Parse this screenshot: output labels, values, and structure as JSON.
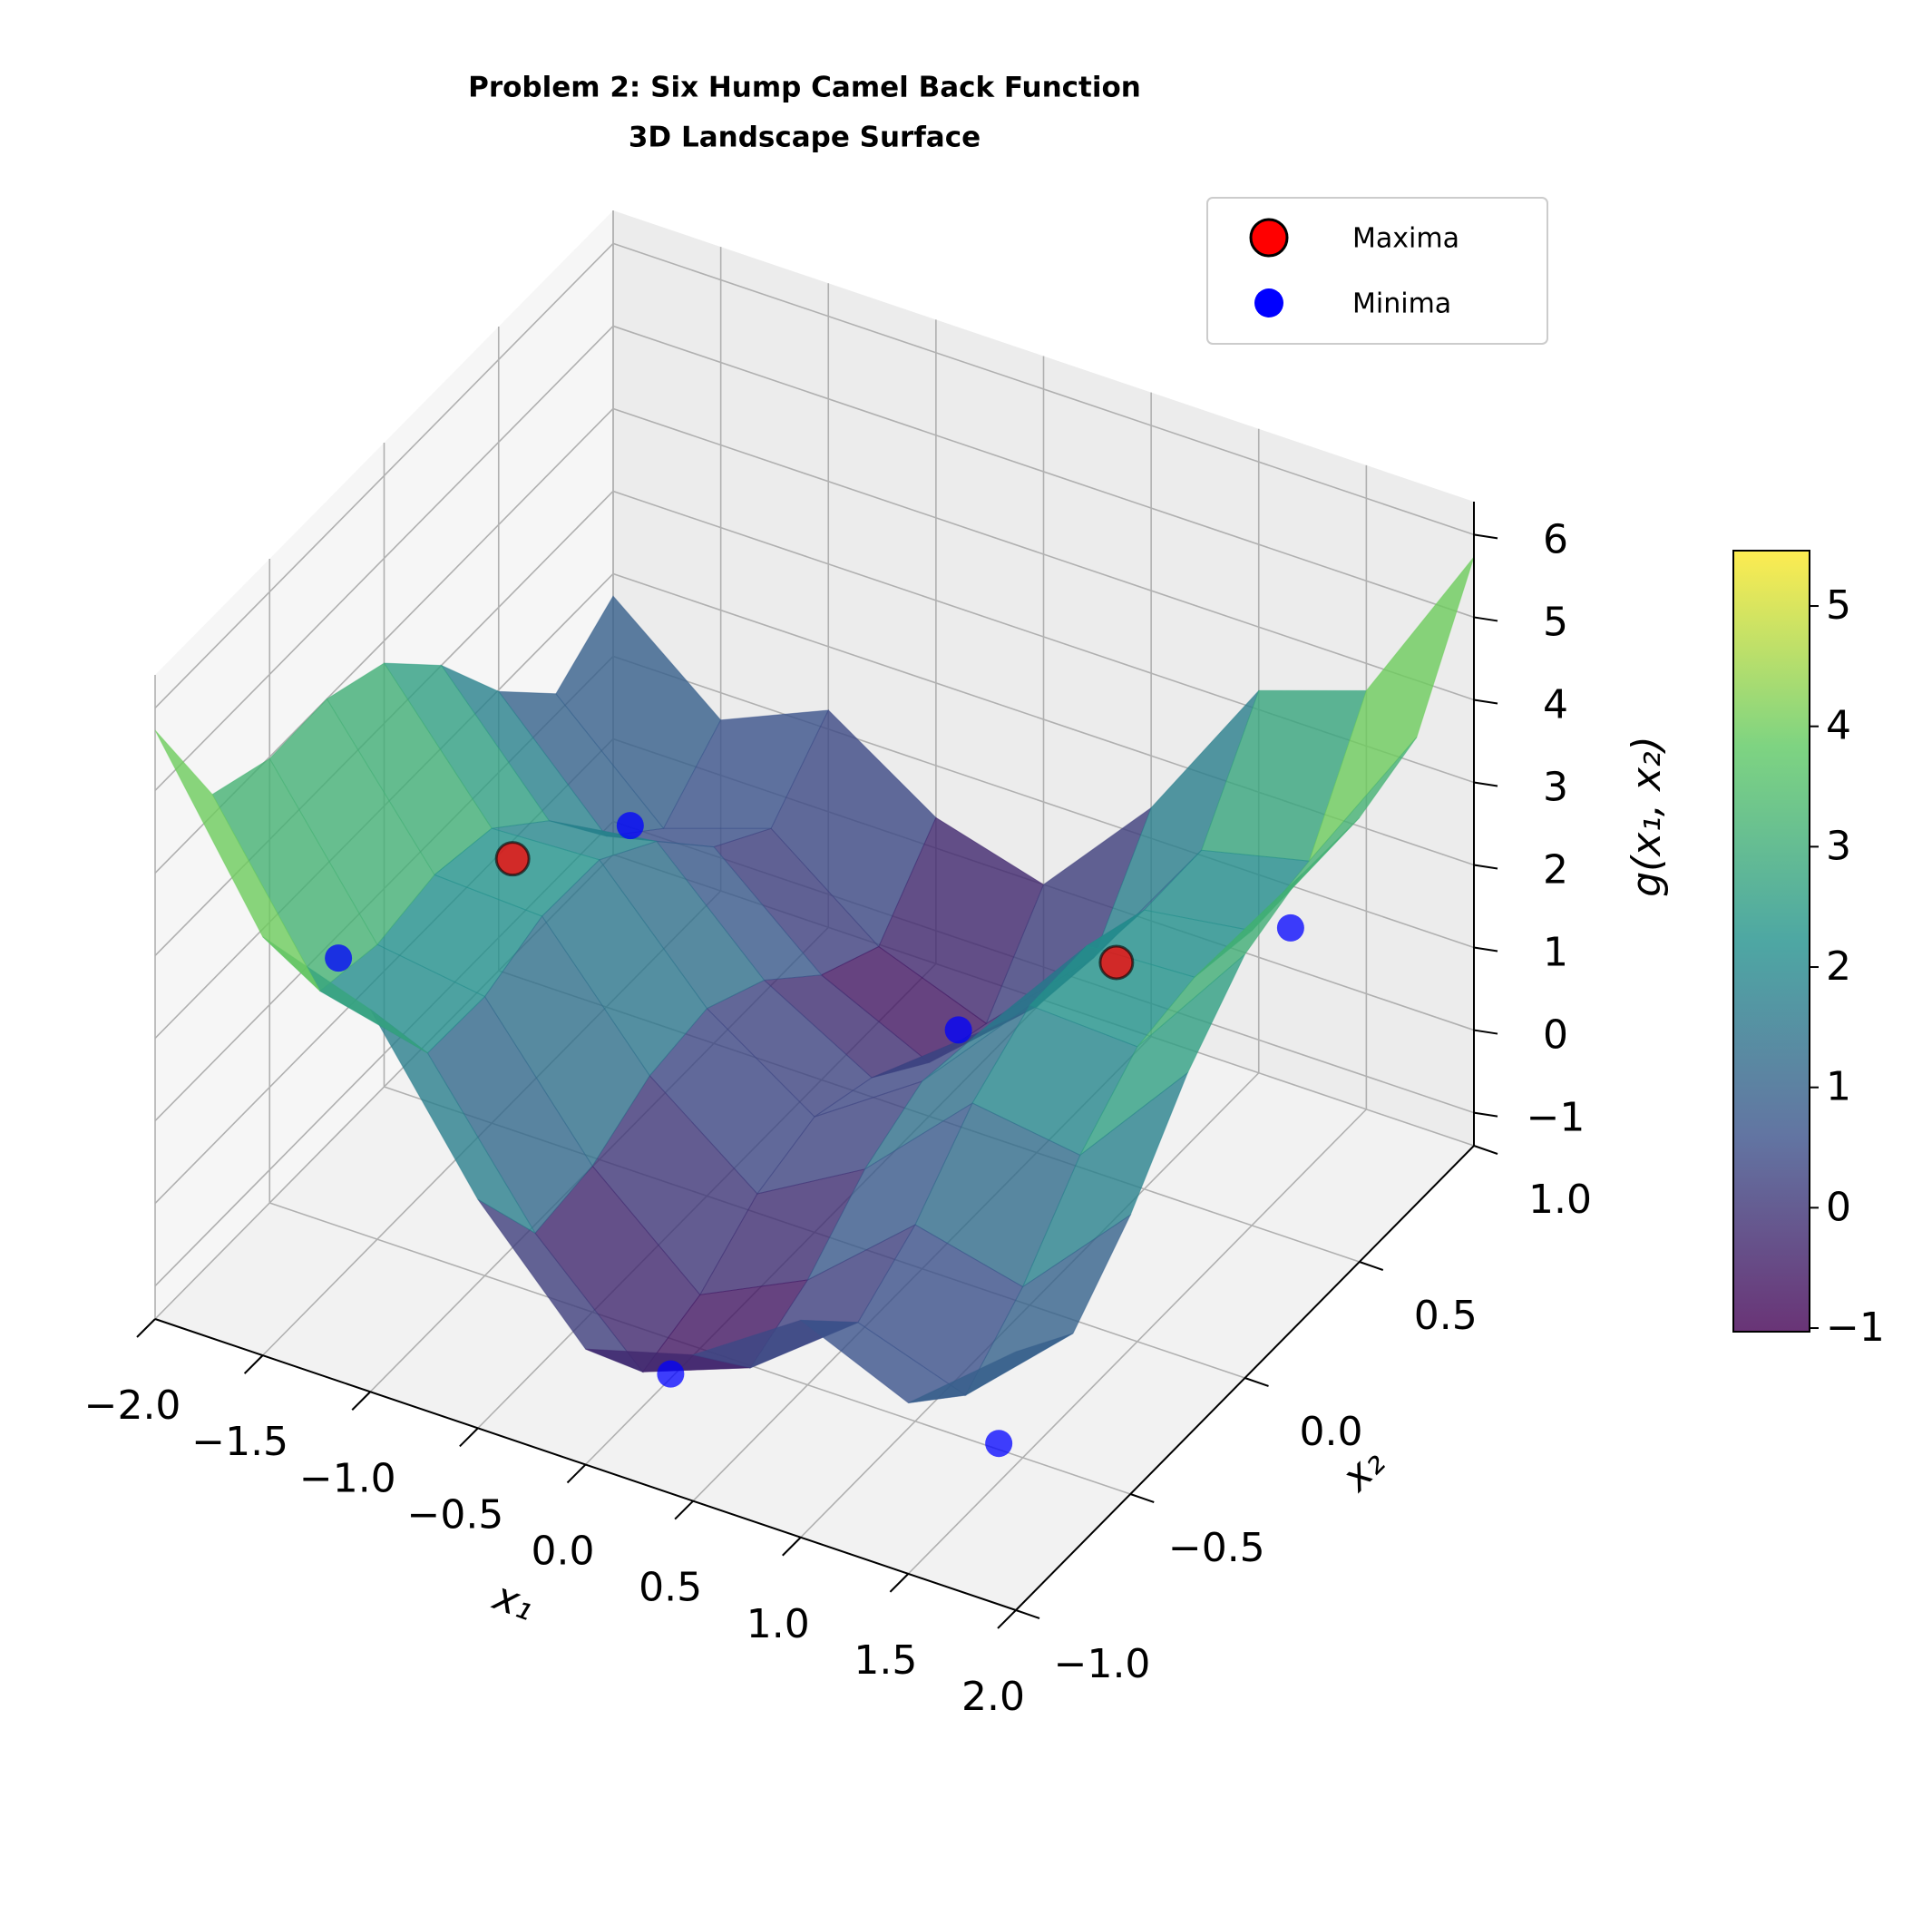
{
  "chart_data": {
    "type": "surface3d",
    "title": "Problem 2: Six Hump Camel Back Function",
    "subtitle": "3D Landscape Surface",
    "x_label": "x₁",
    "y_label": "x₂",
    "z_label": "g(x₁, x₂)",
    "x": [
      -2,
      -1.5,
      -1,
      -0.5,
      0,
      0.5,
      1,
      1.5,
      2
    ],
    "y": [
      -1,
      -0.75,
      -0.5,
      -0.25,
      0,
      0.25,
      0.5,
      0.75,
      1
    ],
    "z": [
      [
        5.73,
        3.67,
        3.23,
        1.37,
        0,
        0.37,
        1.23,
        0.67,
        1.73
      ],
      [
        4.25,
        2.31,
        2.0,
        0.26,
        -0.98,
        -0.49,
        0.5,
        0.06,
        1.25
      ],
      [
        3.98,
        2.17,
        1.98,
        0.37,
        -0.75,
        -0.13,
        0.98,
        0.67,
        1.98
      ],
      [
        4.0,
        2.31,
        2.25,
        0.76,
        -0.23,
        0.51,
        1.75,
        1.56,
        3.0
      ],
      [
        3.73,
        2.17,
        2.23,
        0.87,
        0,
        0.87,
        2.23,
        2.17,
        3.73
      ],
      [
        3.0,
        1.56,
        1.75,
        0.51,
        -0.23,
        0.76,
        2.25,
        2.31,
        4.0
      ],
      [
        1.98,
        0.67,
        0.98,
        -0.13,
        -0.75,
        0.37,
        1.98,
        2.17,
        3.98
      ],
      [
        1.25,
        0.06,
        0.5,
        -0.49,
        -0.98,
        0.26,
        2.0,
        2.31,
        4.25
      ],
      [
        1.73,
        0.67,
        1.23,
        0.37,
        0,
        1.37,
        3.23,
        3.67,
        5.73
      ]
    ],
    "xlim": [
      -2,
      2
    ],
    "ylim": [
      -1,
      1
    ],
    "zlim": [
      -1.4,
      6.4
    ],
    "xticks": [
      {
        "value": -2,
        "label": "−2.0"
      },
      {
        "value": -1.5,
        "label": "−1.5"
      },
      {
        "value": -1,
        "label": "−1.0"
      },
      {
        "value": -0.5,
        "label": "−0.5"
      },
      {
        "value": 0,
        "label": "0.0"
      },
      0.5,
      {
        "value": 1,
        "label": "1.0"
      },
      1.5,
      {
        "value": 2,
        "label": "2.0"
      }
    ],
    "yticks": [
      {
        "value": -1,
        "label": "−1.0"
      },
      {
        "value": -0.5,
        "label": "−0.5"
      },
      {
        "value": 0,
        "label": "0.0"
      },
      0.5,
      {
        "value": 1,
        "label": "1.0"
      }
    ],
    "zticks": [
      {
        "value": -1,
        "label": "−1"
      },
      0,
      1,
      2,
      3,
      4,
      5,
      6
    ],
    "colormap": "viridis",
    "alpha": 0.8,
    "clim": [
      -1.03,
      5.46
    ],
    "cticks": [
      {
        "value": -1,
        "label": "−1"
      },
      0,
      1,
      2,
      3,
      4,
      5
    ],
    "grid": true,
    "legend_position": "upper right",
    "series": [
      {
        "name": "Maxima",
        "color": "#ff0000",
        "edgecolor": "#000000",
        "x": [
          1.2302,
          -1.2302
        ],
        "y": [
          0.1623,
          -0.1623
        ],
        "z": [
          2.4963,
          2.4963
        ]
      },
      {
        "name": "Minima",
        "color": "#0000ff",
        "x": [
          0.0898,
          -0.0898,
          1.7036,
          -1.7036,
          1.6071,
          -1.6071
        ],
        "y": [
          -0.7126,
          0.7126,
          -0.7961,
          0.7961,
          0.5687,
          -0.5687
        ],
        "z": [
          -1.0316,
          -1.0316,
          -0.2155,
          -0.2155,
          2.1043,
          2.1043
        ]
      }
    ]
  }
}
